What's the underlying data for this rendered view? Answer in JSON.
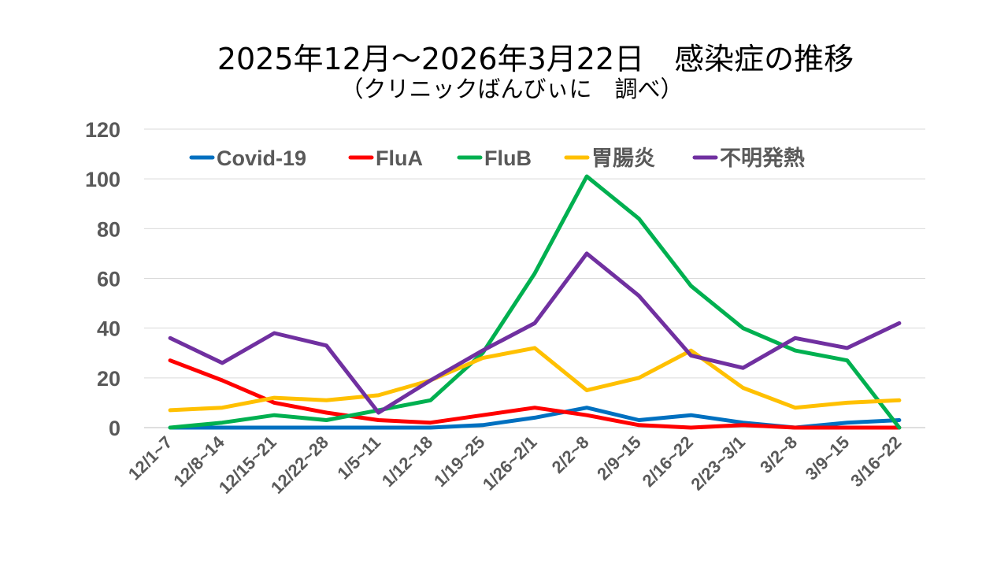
{
  "chart_data": {
    "type": "line",
    "title": "2025年12月～2026年3月22日　感染症の推移",
    "subtitle": "（クリニックばんびぃに　調べ）",
    "xlabel": "",
    "ylabel": "",
    "ylim": [
      0,
      120
    ],
    "yticks": [
      "0",
      "20",
      "40",
      "60",
      "80",
      "100",
      "120"
    ],
    "grid": true,
    "legend_position": "top",
    "categories": [
      "12/1~7",
      "12/8~14",
      "12/15~21",
      "12/22~28",
      "1/5~11",
      "1/12~18",
      "1/19~25",
      "1/26~2/1",
      "2/2~8",
      "2/9~15",
      "2/16~22",
      "2/23~3/1",
      "3/2~8",
      "3/9~15",
      "3/16~22"
    ],
    "series": [
      {
        "name": "Covid-19",
        "color": "#0070C0",
        "values": [
          0,
          0,
          0,
          0,
          0,
          0,
          1,
          4,
          8,
          3,
          5,
          2,
          0,
          2,
          3
        ]
      },
      {
        "name": "FluA",
        "color": "#FF0000",
        "values": [
          27,
          19,
          10,
          6,
          3,
          2,
          5,
          8,
          5,
          1,
          0,
          1,
          0,
          0,
          0
        ]
      },
      {
        "name": "FluB",
        "color": "#00B050",
        "values": [
          0,
          2,
          5,
          3,
          7,
          11,
          30,
          62,
          101,
          84,
          57,
          40,
          31,
          27,
          0
        ]
      },
      {
        "name": "胃腸炎",
        "color": "#FFC000",
        "values": [
          7,
          8,
          12,
          11,
          13,
          19,
          28,
          32,
          15,
          20,
          31,
          16,
          8,
          10,
          11
        ]
      },
      {
        "name": "不明発熱",
        "color": "#7030A0",
        "values": [
          36,
          26,
          38,
          33,
          6,
          19,
          31,
          42,
          70,
          53,
          29,
          24,
          36,
          32,
          42
        ]
      }
    ]
  }
}
